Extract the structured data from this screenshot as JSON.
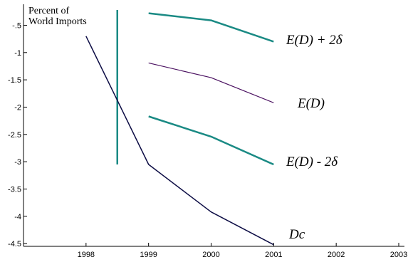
{
  "chart_data": {
    "type": "line",
    "ylabel": [
      "Percent of",
      "World Imports"
    ],
    "xlabel": "",
    "xlim": [
      1997.0,
      2003.0
    ],
    "ylim": [
      -4.55,
      -0.22
    ],
    "x_ticks": [
      "1998",
      "1999",
      "2000",
      "2001",
      "2002",
      "2003"
    ],
    "y_ticks": [
      "-.5",
      "-1",
      "-1.5",
      "-2",
      "-2.5",
      "-3",
      "-3.5",
      "-4",
      "-4.5"
    ],
    "colors": {
      "teal": "#1a8a84",
      "purple": "#4a1060",
      "navy": "#0d0d45"
    },
    "series": [
      {
        "name": "E(D) + 2δ",
        "color": "#1a8a84",
        "width": 2.5,
        "x": [
          1999,
          2000,
          2001
        ],
        "y": [
          -0.28,
          -0.41,
          -0.8
        ]
      },
      {
        "name": "E(D)",
        "color": "#4a1060",
        "width": 1.2,
        "x": [
          1999,
          2000,
          2001
        ],
        "y": [
          -1.19,
          -1.46,
          -1.92
        ]
      },
      {
        "name": "E(D) - 2δ",
        "color": "#1a8a84",
        "width": 2.5,
        "x": [
          1999,
          2000,
          2001
        ],
        "y": [
          -2.17,
          -2.54,
          -3.05
        ]
      },
      {
        "name": "Dc",
        "color": "#0d0d45",
        "width": 1.5,
        "x": [
          1998,
          1999,
          2000,
          2001
        ],
        "y": [
          -0.7,
          -3.05,
          -3.92,
          -4.52
        ]
      }
    ],
    "vertical_marker": {
      "x": 1998.5,
      "y_top": -0.22,
      "y_bottom": -3.05,
      "color": "#1a8a84"
    }
  }
}
